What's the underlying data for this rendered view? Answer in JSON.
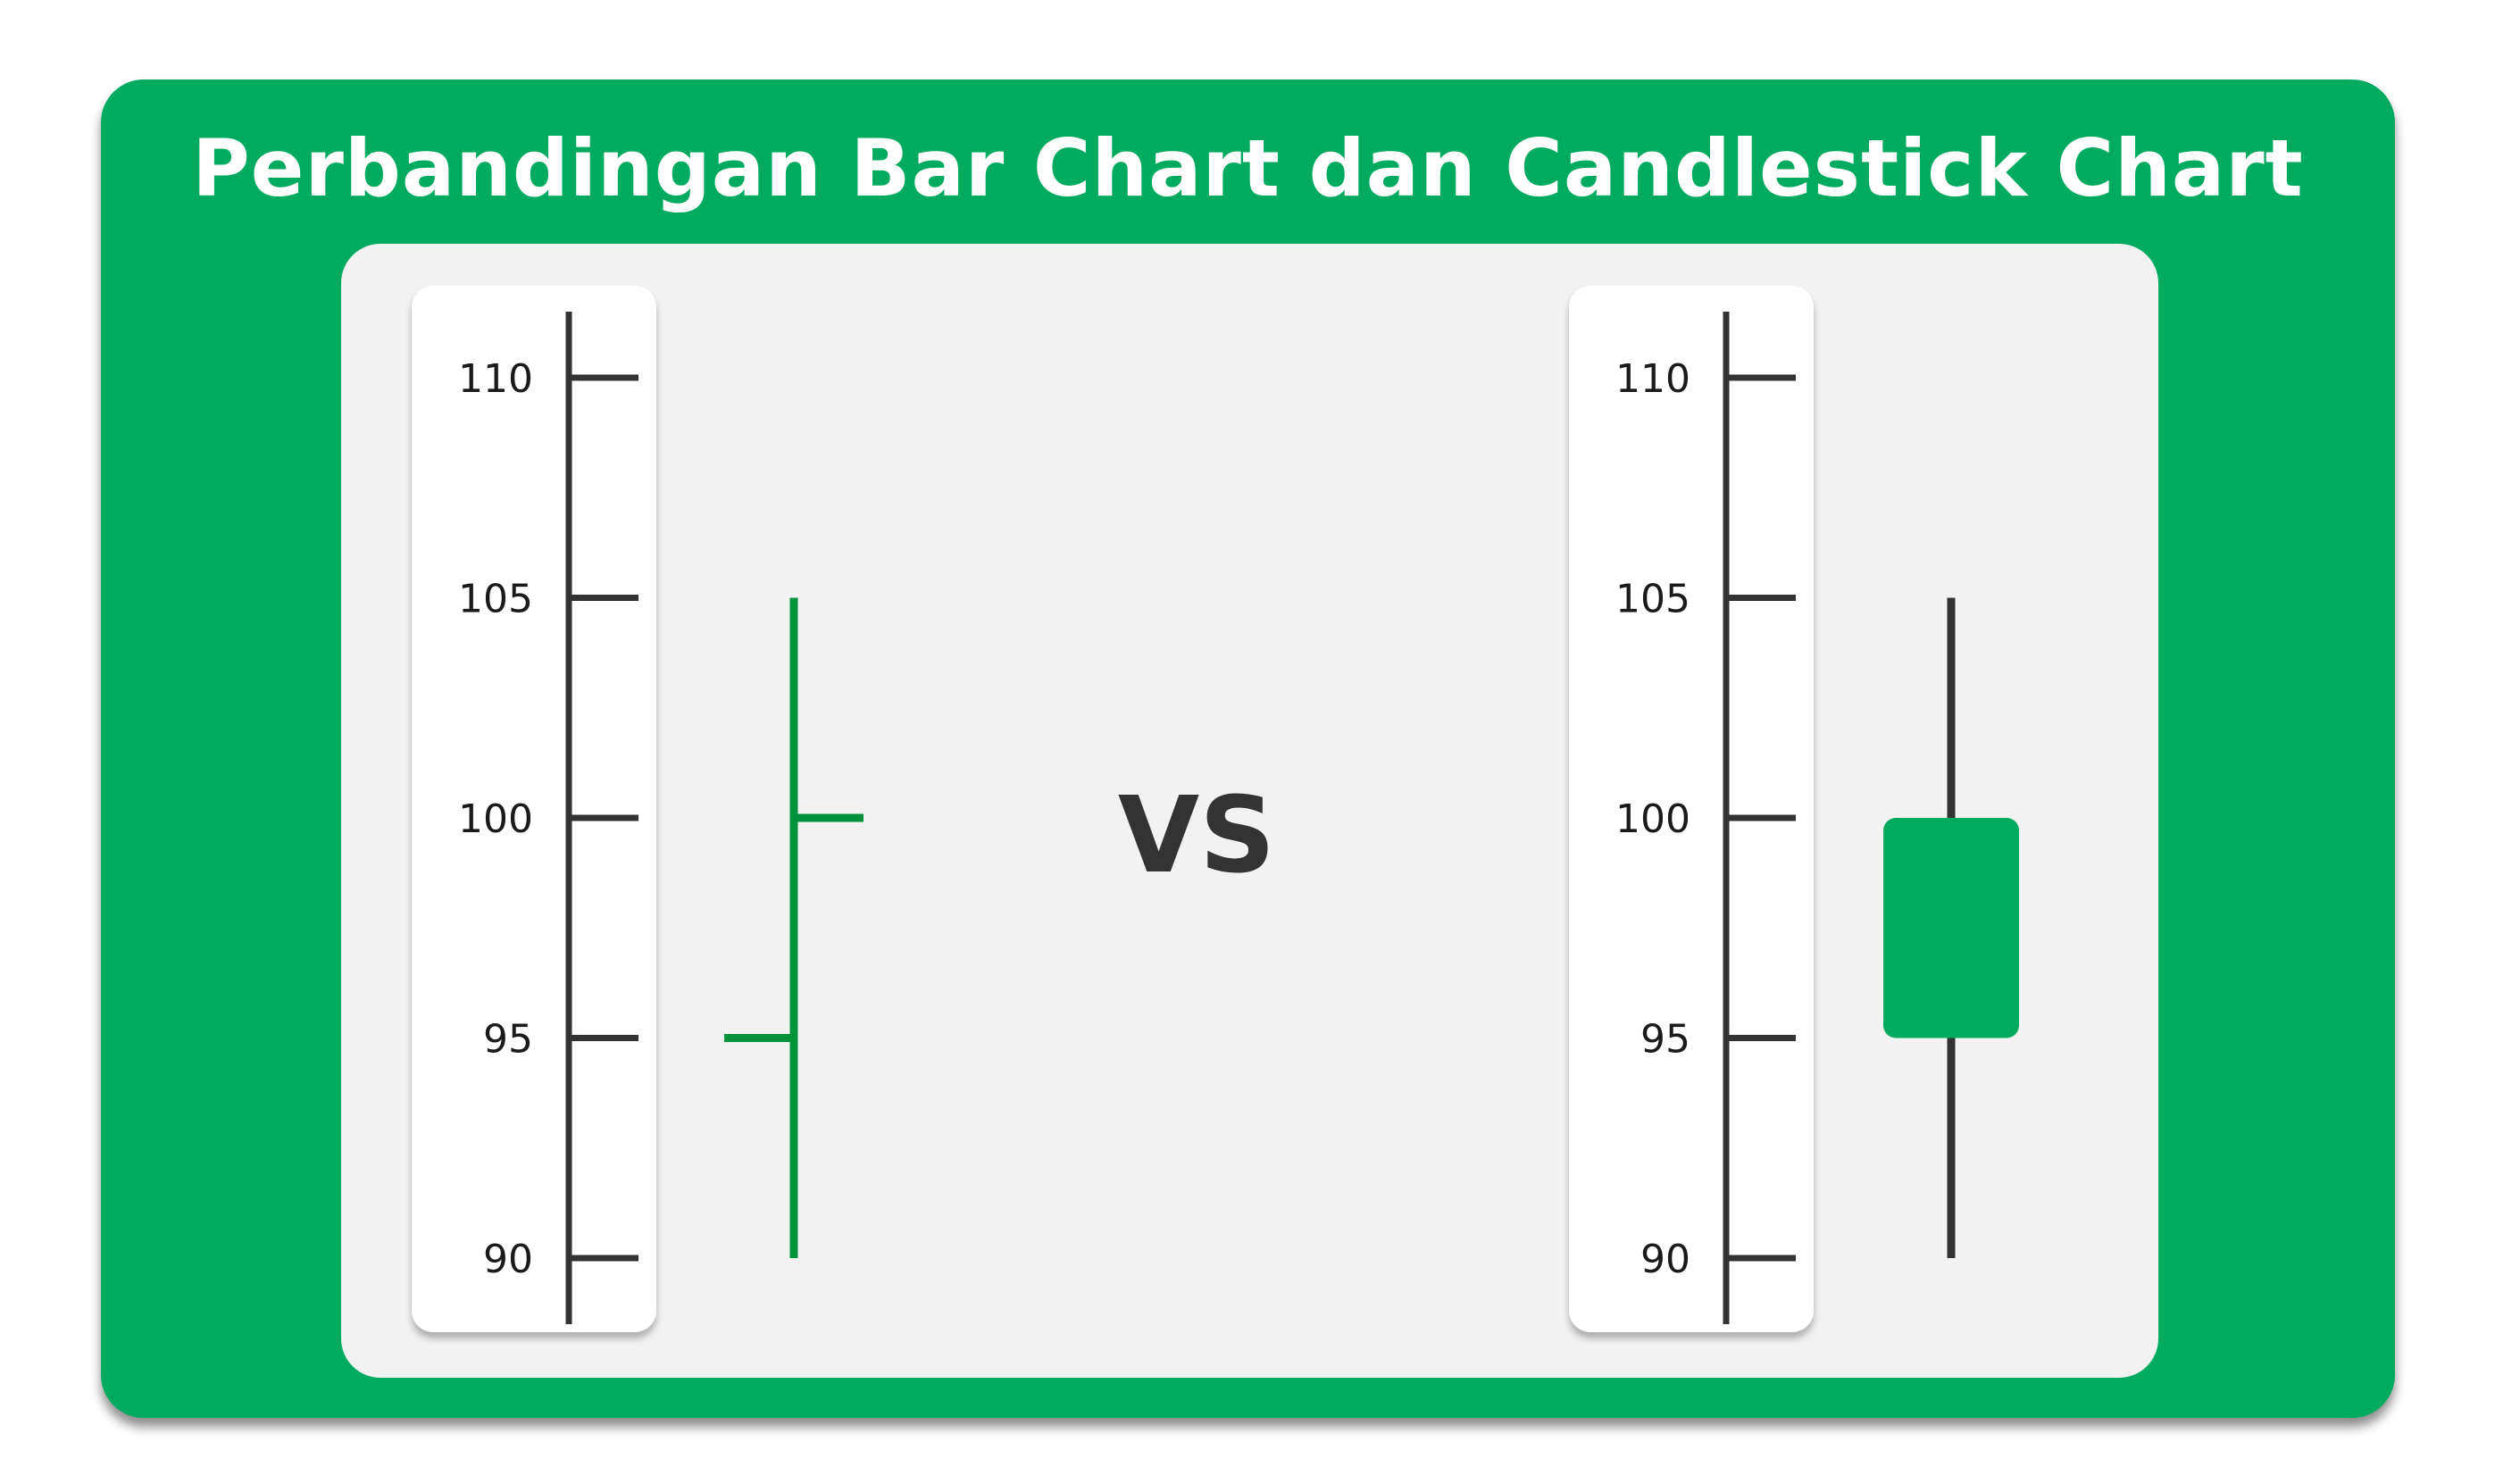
{
  "title": "Perbandingan Bar Chart dan Candlestick Chart",
  "vs_label": "VS",
  "colors": {
    "card": "#00ab5f",
    "panel": "#f2f2f2",
    "ohlc_bar": "#00913c",
    "candle_body": "#00ab5f",
    "candle_wick": "#333333",
    "axis": "#333333"
  },
  "chart_data": [
    {
      "type": "ohlc",
      "name": "Bar Chart",
      "y_ticks": [
        110,
        105,
        100,
        95,
        90
      ],
      "ylim": [
        88.5,
        111.5
      ],
      "open": 95,
      "high": 105,
      "low": 90,
      "close": 100
    },
    {
      "type": "candlestick",
      "name": "Candlestick Chart",
      "y_ticks": [
        110,
        105,
        100,
        95,
        90
      ],
      "ylim": [
        88.5,
        111.5
      ],
      "open": 95,
      "high": 105,
      "low": 90,
      "close": 100
    }
  ]
}
